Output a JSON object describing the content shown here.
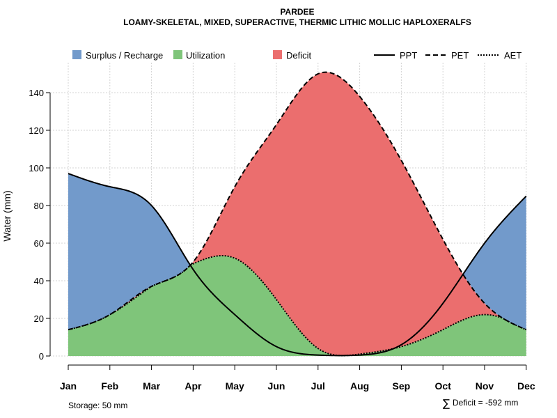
{
  "chart_data": {
    "type": "area",
    "title": "PARDEE",
    "subtitle": "LOAMY-SKELETAL, MIXED, SUPERACTIVE, THERMIC LITHIC MOLLIC HAPLOXERALFS",
    "ylabel": "Water (mm)",
    "xlabel": "",
    "ylim": [
      0,
      155
    ],
    "yticks": [
      0,
      20,
      40,
      60,
      80,
      100,
      120,
      140
    ],
    "categories": [
      "Jan",
      "Feb",
      "Mar",
      "Apr",
      "May",
      "Jun",
      "Jul",
      "Aug",
      "Sep",
      "Oct",
      "Nov",
      "Dec"
    ],
    "grid": true,
    "legend_position": "top",
    "series": [
      {
        "name": "PPT",
        "style": "solid",
        "values": [
          97,
          90,
          80,
          46,
          22,
          5,
          0.5,
          0.5,
          6,
          28,
          60,
          85
        ]
      },
      {
        "name": "PET",
        "style": "dashed",
        "values": [
          14,
          22,
          37,
          50,
          90,
          123,
          150,
          138,
          104,
          62,
          28,
          14
        ]
      },
      {
        "name": "AET",
        "style": "dotted",
        "values": [
          14,
          22,
          37,
          49,
          52,
          30,
          4,
          1,
          5,
          14,
          22,
          14
        ]
      }
    ],
    "fills": [
      {
        "name": "Surplus / Recharge",
        "color": "#729ACB"
      },
      {
        "name": "Utilization",
        "color": "#7FC57A"
      },
      {
        "name": "Deficit",
        "color": "#EB6E6E"
      }
    ],
    "legend": {
      "fills": [
        "Surplus / Recharge",
        "Utilization",
        "Deficit"
      ],
      "lines": [
        "PPT",
        "PET",
        "AET"
      ]
    },
    "annotations": {
      "storage": "Storage: 50 mm",
      "deficit_symbol": "∑",
      "deficit": "Deficit = -592 mm"
    }
  }
}
